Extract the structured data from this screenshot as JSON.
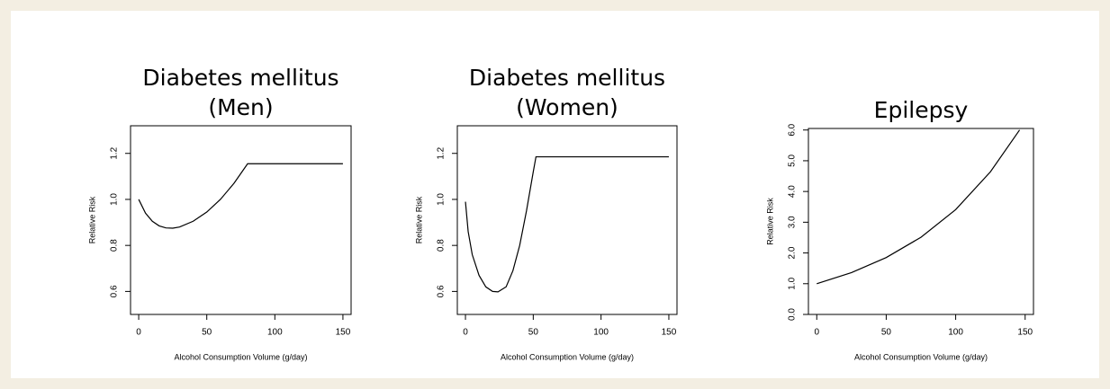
{
  "chart_data": [
    {
      "type": "line",
      "title": [
        "Diabetes mellitus",
        "(Men)"
      ],
      "xlabel": "Alcohol Consumption Volume (g/day)",
      "ylabel": "Relative Risk",
      "x": [
        0,
        5,
        10,
        15,
        20,
        25,
        30,
        40,
        50,
        60,
        70,
        80,
        150
      ],
      "values": [
        1.0,
        0.94,
        0.905,
        0.885,
        0.876,
        0.875,
        0.88,
        0.905,
        0.945,
        1.0,
        1.07,
        1.155,
        1.155
      ],
      "color": "#000000",
      "xlim": [
        -6,
        156
      ],
      "ylim": [
        0.5,
        1.32
      ],
      "xticks": [
        0,
        50,
        100,
        150
      ],
      "yticks": [
        0.6,
        0.8,
        {
          "value": 1,
          "label": "1.0"
        },
        1.2
      ]
    },
    {
      "type": "line",
      "title": [
        "Diabetes mellitus",
        "(Women)"
      ],
      "xlabel": "Alcohol Consumption Volume (g/day)",
      "ylabel": "Relative Risk",
      "x": [
        0,
        2,
        5,
        10,
        15,
        20,
        24,
        30,
        35,
        40,
        45,
        50,
        52,
        150
      ],
      "values": [
        0.99,
        0.86,
        0.76,
        0.67,
        0.62,
        0.6,
        0.598,
        0.62,
        0.69,
        0.8,
        0.95,
        1.12,
        1.185,
        1.185
      ],
      "color": "#000000",
      "xlim": [
        -6,
        156
      ],
      "ylim": [
        0.5,
        1.32
      ],
      "xticks": [
        0,
        50,
        100,
        150
      ],
      "yticks": [
        0.6,
        0.8,
        {
          "value": 1,
          "label": "1.0"
        },
        1.2
      ]
    },
    {
      "type": "line",
      "title": [
        "Epilepsy"
      ],
      "xlabel": "Alcohol Consumption Volume (g/day)",
      "ylabel": "Relative Risk",
      "x": [
        0,
        25,
        50,
        75,
        100,
        125,
        146
      ],
      "values": [
        1.0,
        1.36,
        1.85,
        2.51,
        3.41,
        4.64,
        6.0
      ],
      "color": "#000000",
      "xlim": [
        -6,
        156
      ],
      "ylim": [
        0,
        6.05
      ],
      "xticks": [
        0,
        50,
        100,
        150
      ],
      "yticks": [
        {
          "value": 0,
          "label": "0.0"
        },
        {
          "value": 1,
          "label": "1.0"
        },
        {
          "value": 2,
          "label": "2.0"
        },
        {
          "value": 3,
          "label": "3.0"
        },
        {
          "value": 4,
          "label": "4.0"
        },
        {
          "value": 5,
          "label": "5.0"
        },
        {
          "value": 6,
          "label": "6.0"
        }
      ]
    }
  ]
}
